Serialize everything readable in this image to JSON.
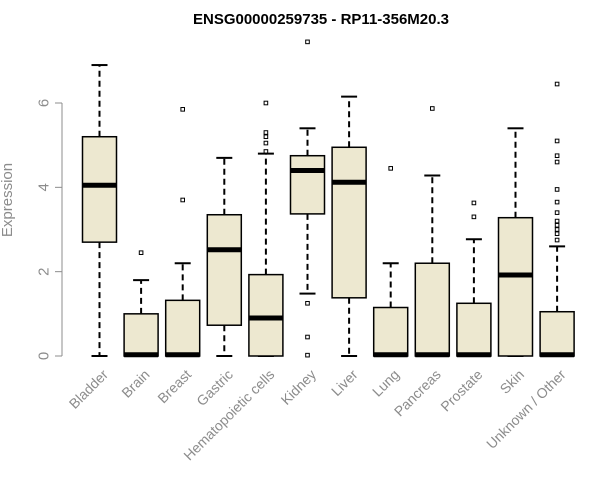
{
  "chart_data": {
    "type": "boxplot",
    "title": "ENSG00000259735 - RP11-356M20.3",
    "xlabel": "",
    "ylabel": "Expression",
    "ylim": [
      0,
      7.5
    ],
    "yticks": [
      0,
      2,
      4,
      6
    ],
    "colors": {
      "box_fill": "#ede8d0",
      "stroke": "#000000",
      "axis": "#8c8c8c"
    },
    "categories": [
      "Bladder",
      "Brain",
      "Breast",
      "Gastric",
      "Hematopoietic cells",
      "Kidney",
      "Liver",
      "Lung",
      "Pancreas",
      "Prostate",
      "Skin",
      "Unknown / Other"
    ],
    "boxes": [
      {
        "name": "Bladder",
        "whisker_low": 0.0,
        "q1": 2.7,
        "median": 4.05,
        "q3": 5.2,
        "whisker_high": 6.9,
        "outliers": []
      },
      {
        "name": "Brain",
        "whisker_low": 0.0,
        "q1": 0.0,
        "median": 0.03,
        "q3": 1.0,
        "whisker_high": 1.8,
        "outliers": [
          2.45
        ]
      },
      {
        "name": "Breast",
        "whisker_low": 0.0,
        "q1": 0.0,
        "median": 0.03,
        "q3": 1.32,
        "whisker_high": 2.2,
        "outliers": [
          3.7,
          5.85
        ]
      },
      {
        "name": "Gastric",
        "whisker_low": 0.0,
        "q1": 0.73,
        "median": 2.52,
        "q3": 3.35,
        "whisker_high": 4.7,
        "outliers": []
      },
      {
        "name": "Hematopoietic cells",
        "whisker_low": 0.0,
        "q1": 0.0,
        "median": 0.9,
        "q3": 1.93,
        "whisker_high": 4.8,
        "outliers": [
          4.85,
          5.05,
          5.2,
          5.3,
          6.0
        ]
      },
      {
        "name": "Kidney",
        "whisker_low": 1.48,
        "q1": 3.37,
        "median": 4.4,
        "q3": 4.75,
        "whisker_high": 5.4,
        "outliers": [
          0.02,
          0.45,
          1.25,
          7.45
        ]
      },
      {
        "name": "Liver",
        "whisker_low": 0.0,
        "q1": 1.38,
        "median": 4.12,
        "q3": 4.95,
        "whisker_high": 6.15,
        "outliers": []
      },
      {
        "name": "Lung",
        "whisker_low": 0.0,
        "q1": 0.0,
        "median": 0.03,
        "q3": 1.15,
        "whisker_high": 2.2,
        "outliers": [
          4.45
        ]
      },
      {
        "name": "Pancreas",
        "whisker_low": 0.0,
        "q1": 0.0,
        "median": 0.03,
        "q3": 2.2,
        "whisker_high": 4.28,
        "outliers": [
          5.87
        ]
      },
      {
        "name": "Prostate",
        "whisker_low": 0.0,
        "q1": 0.0,
        "median": 0.03,
        "q3": 1.25,
        "whisker_high": 2.77,
        "outliers": [
          3.3,
          3.63
        ]
      },
      {
        "name": "Skin",
        "whisker_low": 0.0,
        "q1": 0.0,
        "median": 1.92,
        "q3": 3.28,
        "whisker_high": 5.4,
        "outliers": []
      },
      {
        "name": "Unknown / Other",
        "whisker_low": 0.0,
        "q1": 0.0,
        "median": 0.03,
        "q3": 1.05,
        "whisker_high": 2.6,
        "outliers": [
          2.75,
          2.9,
          3.0,
          3.1,
          3.2,
          3.4,
          3.65,
          3.95,
          4.6,
          4.75,
          5.1,
          6.45
        ]
      }
    ]
  }
}
